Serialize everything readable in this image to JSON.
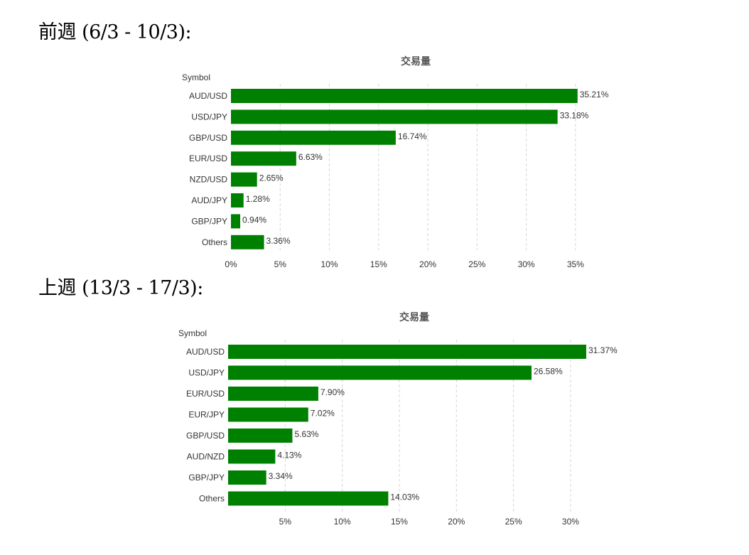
{
  "headings": [
    "前週 (6/3 ‐ 10/3):",
    "上週 (13/3 ‐ 17/3):"
  ],
  "chart_data": [
    {
      "type": "bar",
      "orientation": "horizontal",
      "title": "交易量",
      "ylabel": "Symbol",
      "categories": [
        "AUD/USD",
        "USD/JPY",
        "GBP/USD",
        "EUR/USD",
        "NZD/USD",
        "AUD/JPY",
        "GBP/JPY",
        "Others"
      ],
      "values": [
        35.21,
        33.18,
        16.74,
        6.63,
        2.65,
        1.28,
        0.94,
        3.36
      ],
      "value_labels": [
        "35.21%",
        "33.18%",
        "16.74%",
        "6.63%",
        "2.65%",
        "1.28%",
        "0.94%",
        "3.36%"
      ],
      "xlim": [
        0,
        35.3
      ],
      "xticks": [
        0,
        5,
        10,
        15,
        20,
        25,
        30,
        35
      ],
      "xtick_labels": [
        "0%",
        "5%",
        "10%",
        "15%",
        "20%",
        "25%",
        "30%",
        "35%"
      ],
      "grid": "vertical-dashed",
      "bar_color": "#008000"
    },
    {
      "type": "bar",
      "orientation": "horizontal",
      "title": "交易量",
      "ylabel": "Symbol",
      "categories": [
        "AUD/USD",
        "USD/JPY",
        "EUR/USD",
        "EUR/JPY",
        "GBP/USD",
        "AUD/NZD",
        "GBP/JPY",
        "Others"
      ],
      "values": [
        31.37,
        26.58,
        7.9,
        7.02,
        5.63,
        4.13,
        3.34,
        14.03
      ],
      "value_labels": [
        "31.37%",
        "26.58%",
        "7.90%",
        "7.02%",
        "5.63%",
        "4.13%",
        "3.34%",
        "14.03%"
      ],
      "xlim": [
        0,
        31.0
      ],
      "xticks": [
        5,
        10,
        15,
        20,
        25,
        30
      ],
      "xtick_labels": [
        "5%",
        "10%",
        "15%",
        "20%",
        "25%",
        "30%"
      ],
      "grid": "vertical-dashed",
      "bar_color": "#008000"
    }
  ]
}
